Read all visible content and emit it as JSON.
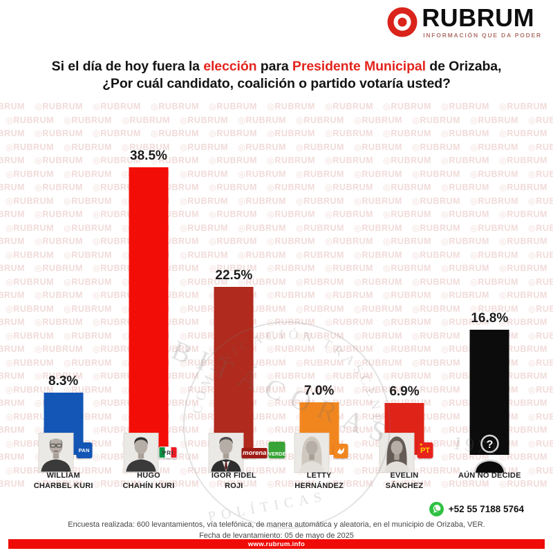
{
  "brand": {
    "name": "RUBRUM",
    "tagline": "INFORMACIÓN QUE DA PODER",
    "website": "www.rubrum.info",
    "whatsapp_number": "+52 55 7188 5764",
    "red": "#d9231b"
  },
  "title": {
    "red_color": "#e3251e",
    "black_color": "#141414",
    "line1_segments": [
      {
        "text": "Si el día de hoy fuera la ",
        "red": false
      },
      {
        "text": "elección",
        "red": true
      },
      {
        "text": " para ",
        "red": false
      },
      {
        "text": "Presidente Municipal",
        "red": true
      },
      {
        "text": " de Orizaba,",
        "red": false
      }
    ],
    "line2": "¿Por cuál candidato, coalición o partido votaría usted?"
  },
  "chart_data": {
    "type": "bar",
    "title": "Si el día de hoy fuera la elección para Presidente Municipal de Orizaba, ¿Por cuál candidato, coalición o partido votaría usted?",
    "unit": "%",
    "ylim": [
      0,
      40
    ],
    "grid": false,
    "value_labels_position": "above-bar",
    "categories": [
      "WILLÍAM CHARBEL KURI",
      "HUGO CHAHÍN KURI",
      "IGOR FIDEL ROJI",
      "LETTY HERNÁNDEZ",
      "EVELIN SÁNCHEZ",
      "AÚN NO DECIDE"
    ],
    "values": [
      8.3,
      38.5,
      22.5,
      7.0,
      6.9,
      16.8
    ],
    "value_labels": [
      "8.3%",
      "38.5%",
      "22.5%",
      "7.0%",
      "6.9%",
      "16.8%"
    ],
    "bar_colors": [
      "#1356b5",
      "#f20d06",
      "#b02a1d",
      "#f1861f",
      "#e02318",
      "#0c0c0c"
    ],
    "parties": [
      [
        "PAN"
      ],
      [
        "PRI"
      ],
      [
        "morena",
        "VERDE"
      ],
      [
        "MC"
      ],
      [
        "PT"
      ],
      []
    ]
  },
  "bars": [
    {
      "pct": "8.3%",
      "value": 8.3,
      "color": "#1356b5",
      "name_lines": [
        "WILLÍAM",
        "CHARBEL KURI"
      ],
      "photo": "male-glasses",
      "logos": [
        {
          "type": "pan",
          "label": "PAN",
          "bg": "#1356b5",
          "fg": "#ffffff"
        }
      ]
    },
    {
      "pct": "38.5%",
      "value": 38.5,
      "color": "#f20d06",
      "name_lines": [
        "HUGO",
        "CHAHÍN KURI"
      ],
      "photo": "male",
      "logos": [
        {
          "type": "pri",
          "label": "PRI",
          "bg": "#ffffff",
          "fg": "#3a3a3a"
        }
      ]
    },
    {
      "pct": "22.5%",
      "value": 22.5,
      "color": "#b02a1d",
      "name_lines": [
        "IGOR FIDEL",
        "ROJI"
      ],
      "photo": "male-suit",
      "logos": [
        {
          "type": "morena",
          "label": "morena",
          "bg": "#9e1c15",
          "fg": "#ffffff"
        },
        {
          "type": "verde",
          "label": "VERDE",
          "bg": "#38a437",
          "fg": "#ffffff"
        }
      ]
    },
    {
      "pct": "7.0%",
      "value": 7.0,
      "color": "#f1861f",
      "name_lines": [
        "LETTY",
        "HERNÁNDEZ"
      ],
      "photo": "female-light",
      "logos": [
        {
          "type": "mc",
          "label": "",
          "bg": "#f1861f",
          "fg": "#ffffff"
        }
      ]
    },
    {
      "pct": "6.9%",
      "value": 6.9,
      "color": "#e02318",
      "name_lines": [
        "EVELIN",
        "SÁNCHEZ"
      ],
      "photo": "female-dark",
      "logos": [
        {
          "type": "pt",
          "label": "PT",
          "bg": "#e8231d",
          "fg": "#ffd400",
          "star": "★"
        }
      ]
    },
    {
      "pct": "16.8%",
      "value": 16.8,
      "color": "#0c0c0c",
      "name_lines": [
        "AÚN NO DECIDE"
      ],
      "photo": "silhouette-question",
      "question_mark": "?",
      "logos": []
    }
  ],
  "footer": {
    "line1": "Encuesta realizada: 600 levantamientos, vía telefónica, de manera automática y aleatoria, en el municipio de Orizaba, VER.",
    "line2": "Fecha de levantamiento: 05 de mayo de 2025"
  },
  "watermark": {
    "tile": "◎RUBRUM",
    "stamp": [
      "COMUNICACIÓN TRASCENDENTE",
      "BITÁCORAS",
      "POLÍTICAS",
      "1971"
    ]
  }
}
